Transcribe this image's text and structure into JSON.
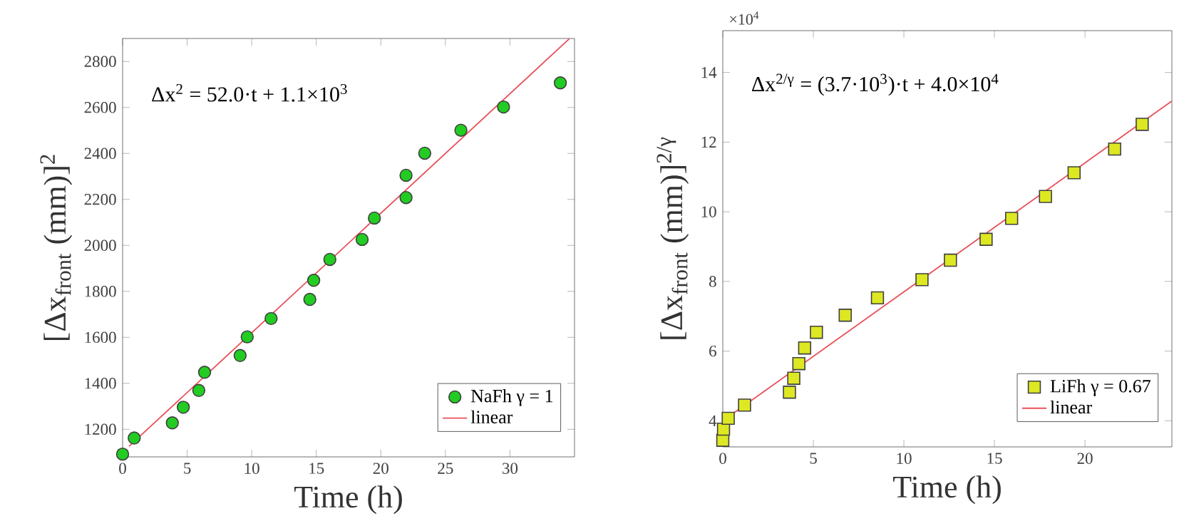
{
  "chart_data": [
    {
      "type": "scatter",
      "xlabel": "Time (h)",
      "ylabel": "[Δx$_{front}$ (mm)]$^{2}$",
      "annotations": [
        "Δx$^{2}$ = 52.0·t + 1.1×10$^{3}$"
      ],
      "xlim": [
        0,
        35
      ],
      "ylim": [
        1080,
        2900
      ],
      "xticks": [
        0,
        5,
        10,
        15,
        20,
        25,
        30
      ],
      "yticks": [
        1200,
        1400,
        1600,
        1800,
        2000,
        2200,
        2400,
        2600,
        2800
      ],
      "legend": "bottom right",
      "grid": false,
      "series": [
        {
          "name": "NaFh γ = 1",
          "color": "#22cc22",
          "marker": "circle",
          "x": [
            0,
            0.9,
            3.85,
            4.7,
            5.9,
            6.35,
            9.1,
            9.65,
            11.5,
            14.5,
            14.8,
            16.05,
            18.55,
            19.5,
            21.95,
            21.95,
            23.4,
            26.2,
            29.5,
            33.9
          ],
          "values": [
            1092,
            1162,
            1228,
            1296,
            1369,
            1448,
            1521,
            1602,
            1682,
            1765,
            1848,
            1939,
            2026,
            2119,
            2208,
            2305,
            2401,
            2501,
            2602,
            2707
          ]
        },
        {
          "name": "linear",
          "type": "line",
          "color": "#e8505a",
          "marker": "none",
          "x": [
            0.5,
            34.6
          ],
          "values": [
            1126,
            2899
          ]
        }
      ]
    },
    {
      "type": "scatter",
      "xlabel": "Time (h)",
      "ylabel": "[Δx$_{front}$ (mm)]$^{2/γ}$",
      "annotations": [
        "Δx$^{2/γ}$ = (3.7·10$^{3}$)·t + 4.0×10$^{4}$",
        "×10$^{4}$"
      ],
      "xlim": [
        0,
        24.8
      ],
      "ylim": [
        3.25,
        15.2
      ],
      "xticks": [
        0,
        5,
        10,
        15,
        20
      ],
      "yticks": [
        4,
        6,
        8,
        10,
        12,
        14
      ],
      "legend": "bottom right",
      "grid": false,
      "series": [
        {
          "name": "LiFh γ = 0.67",
          "color": "#dde822",
          "marker": "square",
          "x": [
            0,
            0.04,
            0.3,
            1.2,
            3.68,
            3.92,
            4.2,
            4.52,
            5.17,
            6.76,
            8.54,
            11.0,
            12.57,
            14.54,
            15.95,
            17.82,
            19.4,
            21.64,
            23.16
          ],
          "values": [
            3.44,
            3.76,
            4.07,
            4.45,
            4.82,
            5.22,
            5.64,
            6.09,
            6.54,
            7.03,
            7.53,
            8.05,
            8.61,
            9.21,
            9.81,
            10.44,
            11.12,
            11.8,
            12.51
          ]
        },
        {
          "name": "linear",
          "type": "line",
          "color": "#e8505a",
          "marker": "none",
          "x": [
            0.6,
            24.8
          ],
          "values": [
            4.22,
            13.18
          ]
        }
      ]
    }
  ]
}
